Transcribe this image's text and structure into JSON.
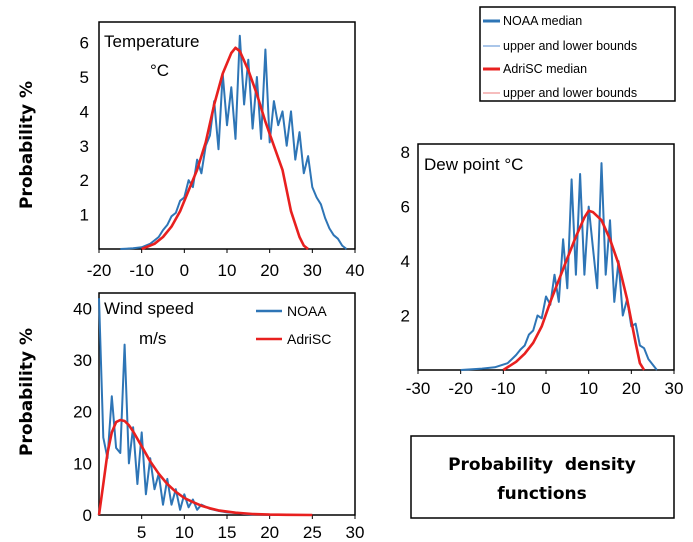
{
  "y_axis_title": "Probability %",
  "summary_box": {
    "line1": "Probability  density",
    "line2": "functions"
  },
  "top_legend": {
    "entries": [
      {
        "label": "NOAA median",
        "color": "#2E75B6"
      },
      {
        "label": "upper and lower bounds",
        "color": "#8DB4E2"
      },
      {
        "label": "AdriSC median",
        "color": "#E8201F"
      },
      {
        "label": "upper and lower bounds",
        "color": "#F4A7A7"
      }
    ]
  },
  "colors": {
    "noaa": "#2E75B6",
    "adrisc": "#E8201F"
  },
  "chart_data": [
    {
      "id": "temperature",
      "type": "line",
      "title_lines": [
        "Temperature",
        "°C"
      ],
      "xlim": [
        -20,
        40
      ],
      "ylim": [
        0,
        6.6
      ],
      "xticks": [
        -20,
        -10,
        0,
        10,
        20,
        30,
        40
      ],
      "yticks": [
        1,
        2,
        3,
        4,
        5,
        6
      ],
      "series": [
        {
          "name": "NOAA",
          "x": [
            -15,
            -12,
            -10,
            -9,
            -8,
            -7,
            -6,
            -5,
            -4,
            -3,
            -2,
            -1,
            0,
            1,
            2,
            3,
            4,
            5,
            6,
            7,
            8,
            9,
            10,
            11,
            12,
            13,
            14,
            15,
            16,
            17,
            18,
            19,
            20,
            21,
            22,
            23,
            24,
            25,
            26,
            27,
            28,
            29,
            30,
            31,
            32,
            33,
            34,
            35,
            36,
            37,
            38
          ],
          "y": [
            0,
            0.02,
            0.05,
            0.1,
            0.15,
            0.25,
            0.35,
            0.55,
            0.7,
            0.95,
            1.05,
            1.4,
            1.5,
            2.0,
            1.8,
            2.6,
            2.2,
            3.0,
            3.3,
            4.3,
            2.9,
            5.1,
            3.6,
            4.7,
            3.2,
            6.2,
            4.2,
            5.5,
            3.5,
            5.0,
            3.2,
            5.8,
            3.1,
            4.3,
            3.6,
            4.0,
            3.0,
            4.0,
            2.6,
            3.4,
            2.2,
            2.7,
            1.8,
            1.5,
            1.3,
            0.9,
            0.6,
            0.4,
            0.3,
            0.1,
            0.0
          ]
        },
        {
          "name": "AdriSC",
          "x": [
            -10,
            -7,
            -5,
            -3,
            -1,
            1,
            3,
            5,
            7,
            9,
            11,
            12,
            13,
            15,
            17,
            19,
            21,
            23,
            25,
            27,
            28,
            29
          ],
          "y": [
            0.0,
            0.15,
            0.35,
            0.65,
            1.1,
            1.7,
            2.3,
            3.1,
            4.2,
            5.1,
            5.7,
            5.85,
            5.75,
            5.2,
            4.5,
            3.7,
            3.0,
            2.3,
            1.1,
            0.35,
            0.1,
            0.0
          ]
        }
      ]
    },
    {
      "id": "wind",
      "type": "line",
      "title_lines": [
        "Wind speed",
        "m/s"
      ],
      "xlim": [
        0,
        30
      ],
      "ylim": [
        0,
        43
      ],
      "xticks": [
        5,
        10,
        15,
        20,
        25,
        30
      ],
      "yticks": [
        0,
        10,
        20,
        30,
        40
      ],
      "legend": [
        "NOAA",
        "AdriSC"
      ],
      "series": [
        {
          "name": "NOAA",
          "x": [
            0,
            0.5,
            1,
            1.5,
            2,
            2.5,
            3,
            3.5,
            4,
            4.5,
            5,
            5.5,
            6,
            6.5,
            7,
            7.5,
            8,
            8.5,
            9,
            9.5,
            10,
            10.5,
            11,
            11.5,
            12,
            13,
            14,
            15,
            16,
            17,
            18,
            20,
            22
          ],
          "y": [
            42,
            15,
            11,
            23,
            13,
            12,
            33,
            10,
            17,
            6,
            16,
            4,
            11,
            5,
            8,
            2,
            7,
            2,
            5,
            1,
            4,
            1.5,
            3,
            1,
            2,
            1.2,
            0.8,
            0.5,
            0.4,
            0.2,
            0.1,
            0.05,
            0.0
          ]
        },
        {
          "name": "AdriSC",
          "x": [
            0,
            0.5,
            1,
            1.5,
            2,
            2.5,
            3,
            3.5,
            4,
            5,
            6,
            7,
            8,
            9,
            10,
            11,
            12,
            13,
            14,
            16,
            18,
            20,
            22,
            25
          ],
          "y": [
            0,
            6,
            12,
            16,
            18,
            18.4,
            18.2,
            17.4,
            16.2,
            13.3,
            10.4,
            8.0,
            6.0,
            4.5,
            3.3,
            2.5,
            1.8,
            1.3,
            0.9,
            0.45,
            0.2,
            0.08,
            0.03,
            0.0
          ]
        }
      ]
    },
    {
      "id": "dewpoint",
      "type": "line",
      "title_lines": [
        "Dew point °C"
      ],
      "xlim": [
        -30,
        30
      ],
      "ylim": [
        0,
        8.3
      ],
      "xticks": [
        -30,
        -20,
        -10,
        0,
        10,
        20,
        30
      ],
      "yticks": [
        2,
        4,
        6,
        8
      ],
      "series": [
        {
          "name": "NOAA",
          "x": [
            -20,
            -15,
            -12,
            -10,
            -9,
            -8,
            -7,
            -6,
            -5,
            -4,
            -3,
            -2,
            -1,
            0,
            1,
            2,
            3,
            4,
            5,
            6,
            7,
            8,
            9,
            10,
            11,
            12,
            13,
            14,
            15,
            16,
            17,
            18,
            19,
            20,
            21,
            22,
            23,
            24,
            25,
            26
          ],
          "y": [
            0,
            0.05,
            0.1,
            0.2,
            0.25,
            0.4,
            0.55,
            0.75,
            0.9,
            1.3,
            1.45,
            2.0,
            1.9,
            2.7,
            2.4,
            3.5,
            2.5,
            4.8,
            3.0,
            7.0,
            3.5,
            7.2,
            3.5,
            6.0,
            4.5,
            3.0,
            7.6,
            3.5,
            5.5,
            2.5,
            4.0,
            2.0,
            2.6,
            1.6,
            1.7,
            0.9,
            0.8,
            0.4,
            0.2,
            0.0
          ]
        },
        {
          "name": "AdriSC",
          "x": [
            -10,
            -7,
            -5,
            -3,
            -1,
            1,
            3,
            5,
            7,
            9,
            10,
            11,
            13,
            15,
            17,
            19,
            21,
            22,
            23
          ],
          "y": [
            0.0,
            0.3,
            0.6,
            1.0,
            1.6,
            2.5,
            3.3,
            4.1,
            4.9,
            5.6,
            5.85,
            5.8,
            5.5,
            4.8,
            3.9,
            2.6,
            1.0,
            0.25,
            0.0
          ]
        }
      ]
    }
  ]
}
